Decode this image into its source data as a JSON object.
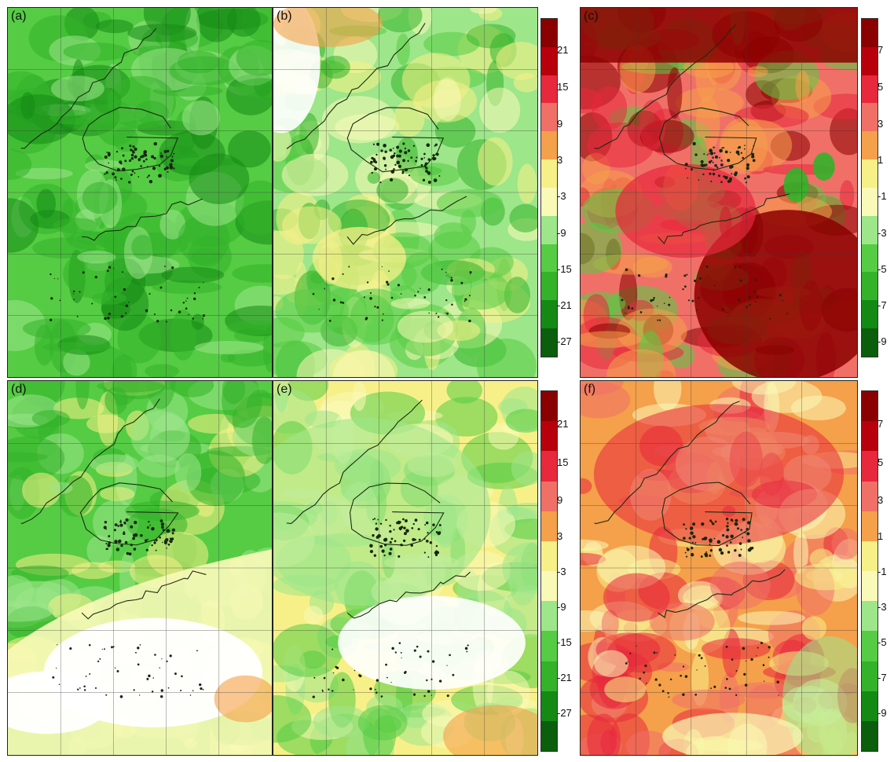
{
  "panels": [
    {
      "label": "(a)",
      "scheme": "dec-strong"
    },
    {
      "label": "(b)",
      "scheme": "dec-mild"
    },
    {
      "label": "(c)",
      "scheme": "inc-strong"
    },
    {
      "label": "(d)",
      "scheme": "dec-south-white"
    },
    {
      "label": "(e)",
      "scheme": "dec-south-white-yellow"
    },
    {
      "label": "(f)",
      "scheme": "inc-mild"
    }
  ],
  "colorbars": [
    {
      "ticks": [
        "21",
        "15",
        "9",
        "3",
        "-3",
        "-9",
        "-15",
        "-21",
        "-27"
      ]
    },
    {
      "ticks": [
        "7",
        "5",
        "3",
        "1",
        "-1",
        "-3",
        "-5",
        "-7",
        "-9"
      ]
    }
  ],
  "colors": {
    "darkred": "#8b0000",
    "red": "#e8283c",
    "salmon": "#f07068",
    "orange": "#f5a04a",
    "yellow": "#f7f088",
    "lightyellow": "#f9f9b8",
    "lightgreen": "#9de68a",
    "green": "#55cc44",
    "midgreen": "#33b22a",
    "darkgreen": "#148a14",
    "deepgreen": "#0b5e0b"
  }
}
